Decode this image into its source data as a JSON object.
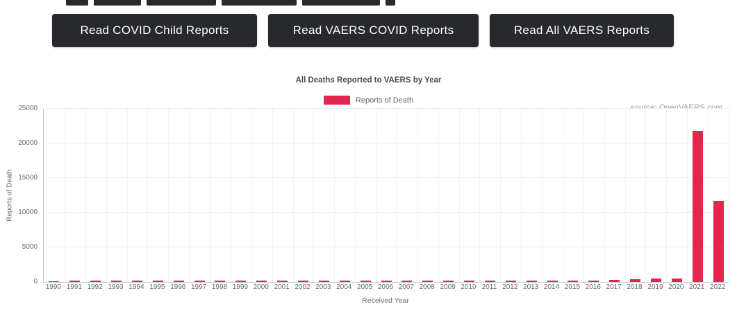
{
  "buttons": [
    {
      "label": "Read COVID Child Reports"
    },
    {
      "label": "Read VAERS COVID Reports"
    },
    {
      "label": "Read All VAERS Reports"
    }
  ],
  "chart_data": {
    "type": "bar",
    "title": "All Deaths Reported to VAERS by Year",
    "legend_label": "Reports of Death",
    "source": "source: OpenVAERS.com",
    "xlabel": "Received Year",
    "ylabel": "Reports of Death",
    "ylim": [
      0,
      25000
    ],
    "yticks": [
      0,
      5000,
      10000,
      15000,
      20000,
      25000
    ],
    "bar_color": "#e4254e",
    "grid": true,
    "legend_position": "top-center",
    "categories": [
      "1990",
      "1991",
      "1992",
      "1993",
      "1994",
      "1995",
      "1996",
      "1997",
      "1998",
      "1999",
      "2000",
      "2001",
      "2002",
      "2003",
      "2004",
      "2005",
      "2006",
      "2007",
      "2008",
      "2009",
      "2010",
      "2011",
      "2012",
      "2013",
      "2014",
      "2015",
      "2016",
      "2017",
      "2018",
      "2019",
      "2020",
      "2021",
      "2022"
    ],
    "values": [
      24,
      154,
      172,
      161,
      155,
      182,
      163,
      152,
      155,
      170,
      163,
      172,
      174,
      184,
      163,
      155,
      152,
      171,
      180,
      191,
      165,
      182,
      183,
      173,
      162,
      171,
      192,
      254,
      405,
      548,
      492,
      21800,
      11700
    ]
  }
}
